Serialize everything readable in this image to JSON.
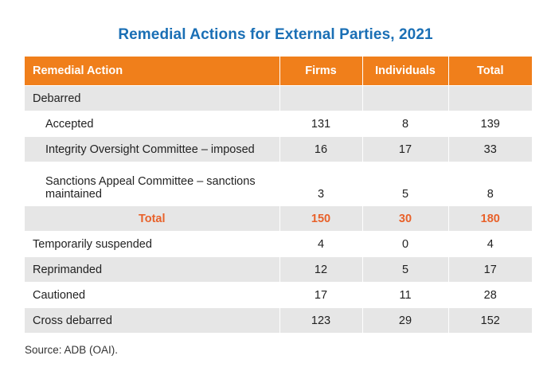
{
  "title": "Remedial Actions for External Parties, 2021",
  "headers": [
    "Remedial Action",
    "Firms",
    "Individuals",
    "Total"
  ],
  "rows": [
    {
      "label": "Debarred",
      "firms": "",
      "individuals": "",
      "total": ""
    },
    {
      "label": "Accepted",
      "firms": "131",
      "individuals": "8",
      "total": "139"
    },
    {
      "label": "Integrity Oversight Committee – imposed",
      "firms": "16",
      "individuals": "17",
      "total": "33"
    },
    {
      "label": "Sanctions Appeal Committee – sanctions maintained",
      "firms": "3",
      "individuals": "5",
      "total": "8"
    },
    {
      "label": "Total",
      "firms": "150",
      "individuals": "30",
      "total": "180"
    },
    {
      "label": "Temporarily suspended",
      "firms": "4",
      "individuals": "0",
      "total": "4"
    },
    {
      "label": "Reprimanded",
      "firms": "12",
      "individuals": "5",
      "total": "17"
    },
    {
      "label": "Cautioned",
      "firms": "17",
      "individuals": "11",
      "total": "28"
    },
    {
      "label": "Cross debarred",
      "firms": "123",
      "individuals": "29",
      "total": "152"
    }
  ],
  "source": "Source: ADB (OAI).",
  "colors": {
    "title": "#1a6fb5",
    "header_bg": "#f07f1b",
    "total_text": "#e8612a",
    "stripe": "#e6e6e6"
  }
}
